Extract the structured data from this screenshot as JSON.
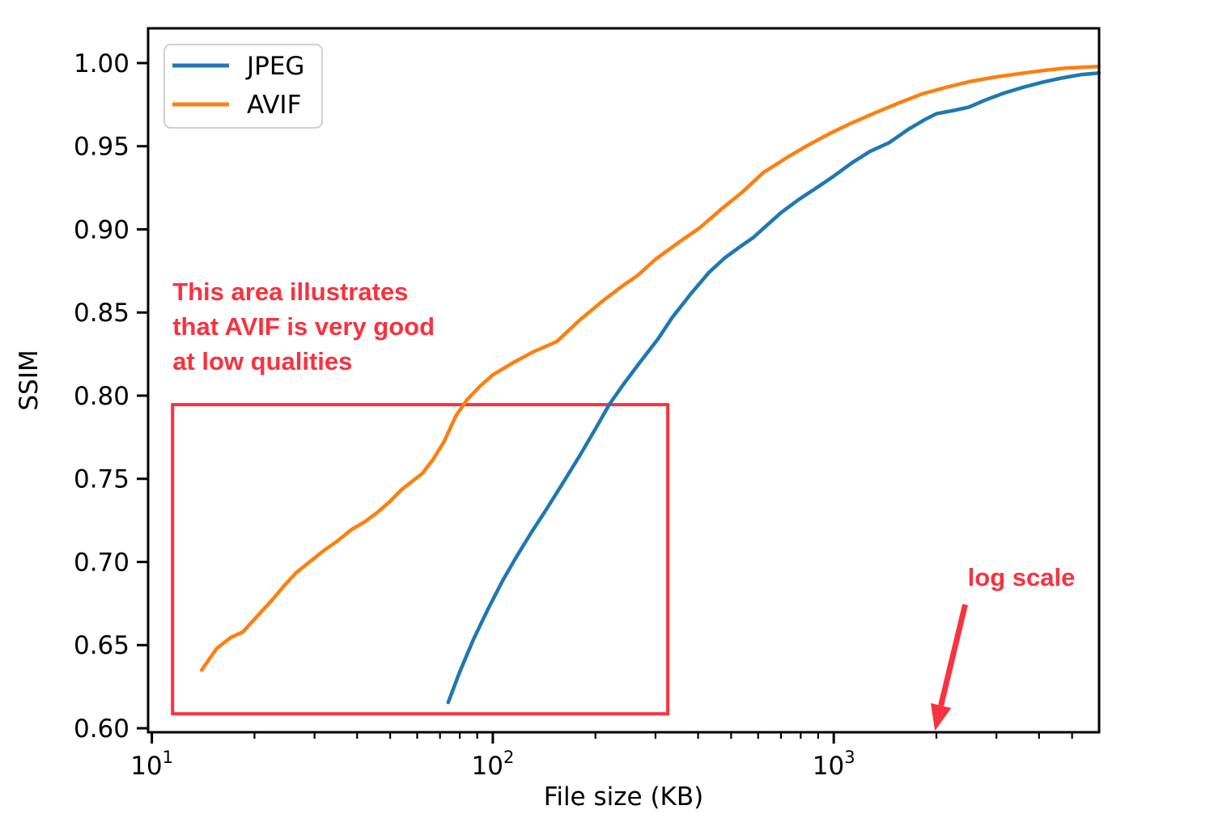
{
  "chart_data": {
    "type": "line",
    "title": "",
    "xlabel": "File size (KB)",
    "ylabel": "SSIM",
    "x_scale": "log",
    "grid": false,
    "xlim": [
      9.75,
      6000
    ],
    "ylim": [
      0.5976,
      1.0209
    ],
    "x_major_ticks": [
      {
        "value": 10,
        "base": "10",
        "exp": "1"
      },
      {
        "value": 100,
        "base": "10",
        "exp": "2"
      },
      {
        "value": 1000,
        "base": "10",
        "exp": "3"
      }
    ],
    "y_ticks": [
      {
        "value": 0.6,
        "label": "0.60"
      },
      {
        "value": 0.65,
        "label": "0.65"
      },
      {
        "value": 0.7,
        "label": "0.70"
      },
      {
        "value": 0.75,
        "label": "0.75"
      },
      {
        "value": 0.8,
        "label": "0.80"
      },
      {
        "value": 0.85,
        "label": "0.85"
      },
      {
        "value": 0.9,
        "label": "0.90"
      },
      {
        "value": 0.95,
        "label": "0.95"
      },
      {
        "value": 1.0,
        "label": "1.00"
      }
    ],
    "legend": {
      "position": "upper left",
      "entries": [
        {
          "label": "JPEG",
          "color": "#1f77b4"
        },
        {
          "label": "AVIF",
          "color": "#ff7f0e"
        }
      ]
    },
    "series": [
      {
        "name": "JPEG",
        "color": "#1f77b4",
        "points": [
          [
            74,
            0.6155
          ],
          [
            80,
            0.634
          ],
          [
            88,
            0.654
          ],
          [
            97,
            0.672
          ],
          [
            107,
            0.689
          ],
          [
            118,
            0.704
          ],
          [
            130,
            0.718
          ],
          [
            143,
            0.731
          ],
          [
            160,
            0.747
          ],
          [
            180,
            0.764
          ],
          [
            200,
            0.78
          ],
          [
            220,
            0.795
          ],
          [
            242,
            0.807
          ],
          [
            270,
            0.82
          ],
          [
            305,
            0.834
          ],
          [
            336,
            0.847
          ],
          [
            380,
            0.861
          ],
          [
            430,
            0.874
          ],
          [
            480,
            0.883
          ],
          [
            535,
            0.89
          ],
          [
            580,
            0.895
          ],
          [
            625,
            0.901
          ],
          [
            700,
            0.91
          ],
          [
            790,
            0.918
          ],
          [
            890,
            0.925
          ],
          [
            1000,
            0.932
          ],
          [
            1130,
            0.94
          ],
          [
            1280,
            0.947
          ],
          [
            1450,
            0.952
          ],
          [
            1650,
            0.96
          ],
          [
            1850,
            0.966
          ],
          [
            2000,
            0.9695
          ],
          [
            2250,
            0.9715
          ],
          [
            2490,
            0.9735
          ],
          [
            2800,
            0.978
          ],
          [
            3160,
            0.982
          ],
          [
            3600,
            0.9855
          ],
          [
            4100,
            0.9885
          ],
          [
            4650,
            0.991
          ],
          [
            5300,
            0.993
          ],
          [
            6000,
            0.994
          ]
        ]
      },
      {
        "name": "AVIF",
        "color": "#ff7f0e",
        "points": [
          [
            14,
            0.635
          ],
          [
            15.5,
            0.648
          ],
          [
            17,
            0.6545
          ],
          [
            18.5,
            0.658
          ],
          [
            20.5,
            0.668
          ],
          [
            22.5,
            0.677
          ],
          [
            24.5,
            0.686
          ],
          [
            26.5,
            0.6935
          ],
          [
            29,
            0.7
          ],
          [
            32,
            0.707
          ],
          [
            35,
            0.7125
          ],
          [
            38.5,
            0.7195
          ],
          [
            42,
            0.724
          ],
          [
            46,
            0.73
          ],
          [
            50,
            0.7365
          ],
          [
            54,
            0.7435
          ],
          [
            58,
            0.7485
          ],
          [
            62,
            0.753
          ],
          [
            67,
            0.762
          ],
          [
            72,
            0.7725
          ],
          [
            78,
            0.788
          ],
          [
            84,
            0.7975
          ],
          [
            92,
            0.806
          ],
          [
            100,
            0.8125
          ],
          [
            115,
            0.82
          ],
          [
            132,
            0.8265
          ],
          [
            154,
            0.8325
          ],
          [
            180,
            0.8455
          ],
          [
            210,
            0.857
          ],
          [
            240,
            0.866
          ],
          [
            265,
            0.872
          ],
          [
            300,
            0.882
          ],
          [
            350,
            0.892
          ],
          [
            405,
            0.901
          ],
          [
            470,
            0.9125
          ],
          [
            540,
            0.9225
          ],
          [
            620,
            0.934
          ],
          [
            720,
            0.9425
          ],
          [
            830,
            0.95
          ],
          [
            970,
            0.9575
          ],
          [
            1130,
            0.964
          ],
          [
            1320,
            0.97
          ],
          [
            1550,
            0.976
          ],
          [
            1820,
            0.9815
          ],
          [
            2140,
            0.9855
          ],
          [
            2520,
            0.989
          ],
          [
            2960,
            0.9915
          ],
          [
            3460,
            0.9935
          ],
          [
            4100,
            0.9955
          ],
          [
            4800,
            0.997
          ],
          [
            6000,
            0.998
          ]
        ]
      }
    ],
    "annotations": {
      "color": "#f8323e",
      "highlight_rect": {
        "x0": 11.5,
        "x1": 326,
        "y0": 0.6087,
        "y1": 0.7946
      },
      "note": {
        "lines": [
          "This area illustrates",
          "that AVIF is very good",
          "at low qualities"
        ],
        "anchor": [
          11.5,
          0.8575
        ]
      },
      "log_scale": {
        "label": "log scale",
        "anchor": [
          3550,
          0.6856
        ],
        "arrow_from": [
          2430,
          0.6744
        ],
        "arrow_to": [
          1980,
          0.5985
        ]
      }
    }
  }
}
